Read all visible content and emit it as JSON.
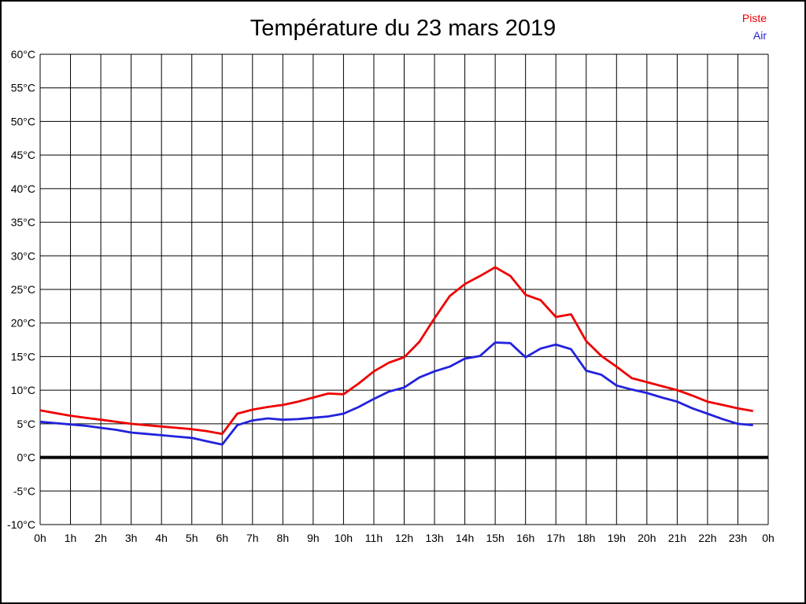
{
  "title": "Température du 23 mars 2019",
  "legend": {
    "items": [
      {
        "label": "Piste",
        "color": "#ee0000"
      },
      {
        "label": "Air",
        "color": "#2222dd"
      }
    ]
  },
  "chart_data": {
    "type": "line",
    "title": "Température du 23 mars 2019",
    "xlabel": "",
    "ylabel": "",
    "xlim": [
      0,
      24
    ],
    "ylim": [
      -10,
      60
    ],
    "y_step": 5,
    "grid": true,
    "zero_line_value": 0,
    "legend_position": "top-right",
    "x_ticks": [
      "0h",
      "1h",
      "2h",
      "3h",
      "4h",
      "5h",
      "6h",
      "7h",
      "8h",
      "9h",
      "10h",
      "11h",
      "12h",
      "13h",
      "14h",
      "15h",
      "16h",
      "17h",
      "18h",
      "19h",
      "20h",
      "21h",
      "22h",
      "23h",
      "0h"
    ],
    "y_ticks": [
      "-10°C",
      "-5°C",
      "0°C",
      "5°C",
      "10°C",
      "15°C",
      "20°C",
      "25°C",
      "30°C",
      "35°C",
      "40°C",
      "45°C",
      "50°C",
      "55°C",
      "60°C"
    ],
    "x": [
      0,
      0.5,
      1,
      1.5,
      2,
      2.5,
      3,
      3.5,
      4,
      4.5,
      5,
      5.5,
      6,
      6.5,
      7,
      7.5,
      8,
      8.5,
      9,
      9.5,
      10,
      10.5,
      11,
      11.5,
      12,
      12.5,
      13,
      13.5,
      14,
      14.5,
      15,
      15.5,
      16,
      16.5,
      17,
      17.5,
      18,
      18.5,
      19,
      19.5,
      20,
      20.5,
      21,
      21.5,
      22,
      22.5,
      23,
      23.5
    ],
    "series": [
      {
        "name": "Piste",
        "color": "#ee0000",
        "values": [
          7.0,
          6.6,
          6.2,
          5.9,
          5.6,
          5.3,
          5.0,
          4.8,
          4.6,
          4.4,
          4.2,
          3.9,
          3.5,
          6.5,
          7.1,
          7.5,
          7.8,
          8.3,
          8.9,
          9.5,
          9.4,
          11.0,
          12.8,
          14.1,
          14.9,
          17.2,
          20.7,
          24.0,
          25.8,
          27.0,
          28.3,
          27.0,
          24.2,
          23.4,
          20.9,
          21.3,
          17.3,
          15.1,
          13.5,
          11.8,
          11.2,
          10.6,
          10.0,
          9.2,
          8.3,
          7.8,
          7.3,
          6.9
        ]
      },
      {
        "name": "Air",
        "color": "#2222dd",
        "values": [
          5.3,
          5.1,
          4.9,
          4.7,
          4.4,
          4.1,
          3.7,
          3.5,
          3.3,
          3.1,
          2.9,
          2.4,
          1.9,
          4.8,
          5.5,
          5.8,
          5.6,
          5.7,
          5.9,
          6.1,
          6.5,
          7.5,
          8.7,
          9.8,
          10.4,
          11.9,
          12.8,
          13.5,
          14.7,
          15.1,
          17.1,
          17.0,
          14.9,
          16.2,
          16.8,
          16.1,
          12.9,
          12.3,
          10.7,
          10.1,
          9.6,
          8.9,
          8.3,
          7.3,
          6.5,
          5.7,
          5.0,
          4.8
        ]
      }
    ]
  }
}
